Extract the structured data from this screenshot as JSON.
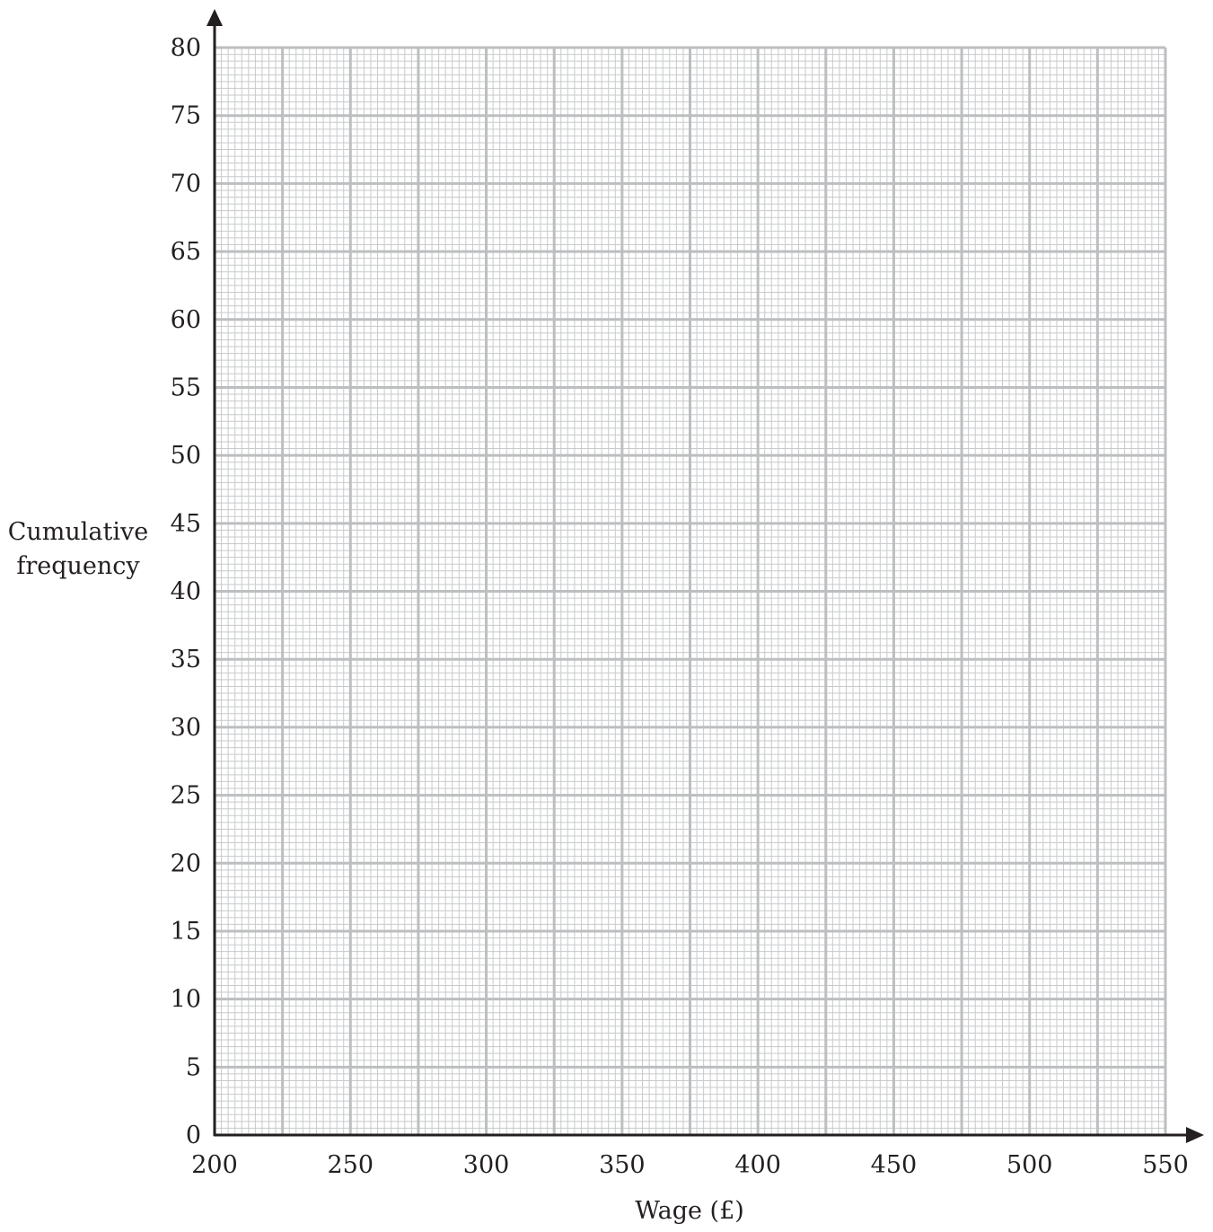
{
  "chart_data": {
    "type": "line",
    "title": "",
    "xlabel": "Wage (£)",
    "ylabel_lines": [
      "Cumulative",
      "frequency"
    ],
    "xlim": [
      200,
      550
    ],
    "ylim": [
      0,
      80
    ],
    "x_ticks": [
      "200",
      "250",
      "300",
      "350",
      "400",
      "450",
      "500",
      "550"
    ],
    "y_ticks": [
      "0",
      "5",
      "10",
      "15",
      "20",
      "25",
      "30",
      "35",
      "40",
      "45",
      "50",
      "55",
      "60",
      "65",
      "70",
      "75",
      "80"
    ],
    "x_major_step": 25,
    "y_major_step": 5,
    "minor_per_major": 10,
    "grid": true,
    "series": []
  },
  "colors": {
    "axis": "#231f20",
    "grid_major": "#bcbec0",
    "grid_minor": "#c8cacc",
    "text": "#231f20"
  }
}
